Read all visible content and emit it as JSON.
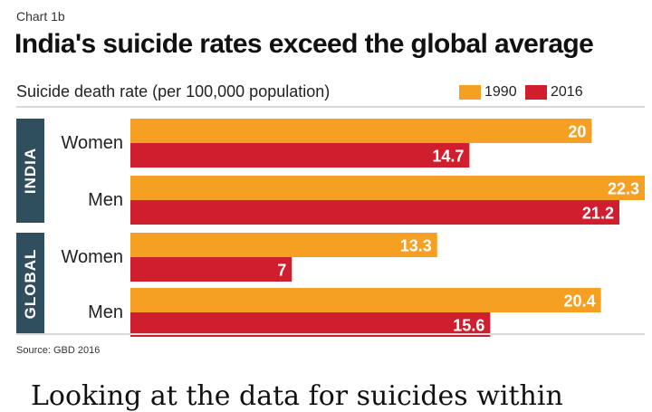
{
  "kicker": "Chart 1b",
  "title": "India's suicide rates exceed the global average",
  "subtitle": "Suicide death rate (per 100,000 population)",
  "source": "Source: GBD 2016",
  "below_text": "Looking at the data for suicides within",
  "colors": {
    "1990": "#f5a023",
    "2016": "#cf1f2e",
    "group_box": "#2f4f5f"
  },
  "chart_data": {
    "type": "bar",
    "orientation": "horizontal",
    "title": "India's suicide rates exceed the global average",
    "xlabel": "Suicide death rate (per 100,000 population)",
    "legend_position": "top-right",
    "groups": [
      "INDIA",
      "GLOBAL"
    ],
    "categories": [
      "Women",
      "Men",
      "Women",
      "Men"
    ],
    "category_group": [
      "INDIA",
      "INDIA",
      "GLOBAL",
      "GLOBAL"
    ],
    "series": [
      {
        "name": "1990",
        "values": [
          20,
          22.3,
          13.3,
          20.4
        ]
      },
      {
        "name": "2016",
        "values": [
          14.7,
          21.2,
          7,
          15.6
        ]
      }
    ],
    "xlim": [
      0,
      22.3
    ]
  }
}
